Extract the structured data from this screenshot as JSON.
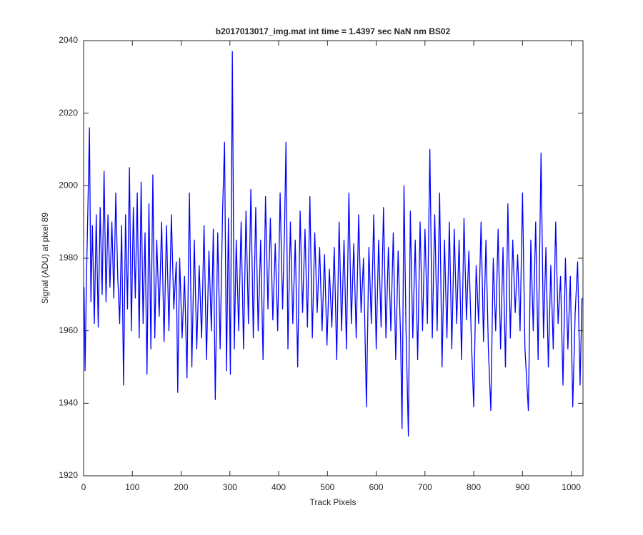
{
  "chart_data": {
    "type": "line",
    "title": "b2017013017_img.mat int time = 1.4397 sec  NaN nm BS02",
    "x_label": "Track Pixels",
    "y_label": "Signal (ADU) at pixel 89",
    "xlim": [
      0,
      1024
    ],
    "ylim": [
      1920,
      2040
    ],
    "xticks": [
      0,
      100,
      200,
      300,
      400,
      500,
      600,
      700,
      800,
      900,
      1000
    ],
    "yticks": [
      1920,
      1940,
      1960,
      1980,
      2000,
      2020,
      2040
    ],
    "grid": false,
    "x": [
      1,
      3,
      6,
      9,
      12,
      15,
      18,
      22,
      26,
      30,
      34,
      38,
      42,
      46,
      50,
      54,
      58,
      62,
      66,
      70,
      74,
      78,
      82,
      86,
      90,
      94,
      98,
      102,
      106,
      110,
      114,
      118,
      122,
      126,
      130,
      134,
      138,
      142,
      146,
      150,
      155,
      160,
      165,
      170,
      175,
      180,
      185,
      190,
      193,
      197,
      202,
      207,
      212,
      217,
      222,
      227,
      232,
      237,
      242,
      247,
      252,
      257,
      262,
      266,
      270,
      275,
      280,
      285,
      289,
      293,
      297,
      301,
      305,
      309,
      313,
      318,
      323,
      328,
      333,
      338,
      343,
      348,
      353,
      358,
      363,
      368,
      373,
      378,
      383,
      388,
      393,
      398,
      403,
      408,
      412,
      415,
      419,
      424,
      429,
      434,
      439,
      444,
      449,
      454,
      459,
      464,
      469,
      474,
      479,
      484,
      489,
      494,
      499,
      504,
      509,
      514,
      519,
      524,
      529,
      534,
      539,
      544,
      549,
      554,
      559,
      564,
      569,
      574,
      580,
      585,
      590,
      595,
      600,
      605,
      610,
      615,
      620,
      625,
      630,
      635,
      640,
      645,
      650,
      653,
      657,
      661,
      666,
      670,
      675,
      680,
      685,
      690,
      695,
      700,
      705,
      710,
      715,
      720,
      725,
      730,
      735,
      740,
      745,
      750,
      755,
      760,
      765,
      770,
      775,
      780,
      785,
      790,
      795,
      800,
      805,
      810,
      815,
      820,
      825,
      830,
      835,
      840,
      845,
      850,
      855,
      860,
      865,
      870,
      875,
      880,
      885,
      890,
      895,
      900,
      905,
      912,
      917,
      922,
      927,
      932,
      938,
      943,
      948,
      953,
      958,
      963,
      968,
      973,
      978,
      983,
      988,
      993,
      998,
      1003,
      1008,
      1013,
      1018,
      1022
    ],
    "series": [
      {
        "color": "#0000ff",
        "values": [
          1972,
          1949,
          1975,
          1995,
          2016,
          1968,
          1989,
          1962,
          1992,
          1961,
          1994,
          1970,
          2004,
          1968,
          1992,
          1972,
          1990,
          1969,
          1998,
          1975,
          1962,
          1989,
          1945,
          1992,
          1966,
          2005,
          1960,
          1994,
          1969,
          1998,
          1958,
          2001,
          1962,
          1987,
          1948,
          1995,
          1955,
          2003,
          1958,
          1985,
          1964,
          1990,
          1957,
          1989,
          1960,
          1992,
          1966,
          1979,
          1943,
          1980,
          1958,
          1975,
          1947,
          1998,
          1950,
          1985,
          1955,
          1978,
          1958,
          1989,
          1952,
          1982,
          1960,
          1988,
          1941,
          1987,
          1955,
          1993,
          2012,
          1949,
          1991,
          1948,
          2037,
          1955,
          1985,
          1960,
          1990,
          1955,
          1993,
          1962,
          1999,
          1958,
          1994,
          1960,
          1985,
          1952,
          1997,
          1966,
          1991,
          1963,
          1984,
          1960,
          1998,
          1966,
          1988,
          2012,
          1955,
          1990,
          1962,
          1985,
          1950,
          1993,
          1965,
          1988,
          1961,
          1997,
          1958,
          1987,
          1965,
          1983,
          1960,
          1981,
          1956,
          1977,
          1961,
          1983,
          1952,
          1990,
          1960,
          1985,
          1955,
          1998,
          1962,
          1984,
          1958,
          1992,
          1965,
          1980,
          1939,
          1983,
          1962,
          1992,
          1955,
          1985,
          1961,
          1994,
          1958,
          1983,
          1960,
          1987,
          1952,
          1982,
          1958,
          1933,
          2000,
          1961,
          1931,
          1993,
          1958,
          1985,
          1952,
          1990,
          1960,
          1988,
          1962,
          2010,
          1958,
          1992,
          1960,
          1998,
          1950,
          1985,
          1958,
          1990,
          1955,
          1988,
          1962,
          1985,
          1952,
          1991,
          1963,
          1982,
          1958,
          1939,
          1978,
          1962,
          1990,
          1957,
          1985,
          1955,
          1938,
          1980,
          1960,
          1988,
          1955,
          1983,
          1950,
          1995,
          1958,
          1985,
          1965,
          1981,
          1960,
          1998,
          1955,
          1938,
          1985,
          1960,
          1990,
          1952,
          2009,
          1958,
          1983,
          1950,
          1978,
          1955,
          1990,
          1962,
          1975,
          1945,
          1980,
          1955,
          1975,
          1939,
          1965,
          1979,
          1945,
          1969
        ]
      }
    ]
  }
}
